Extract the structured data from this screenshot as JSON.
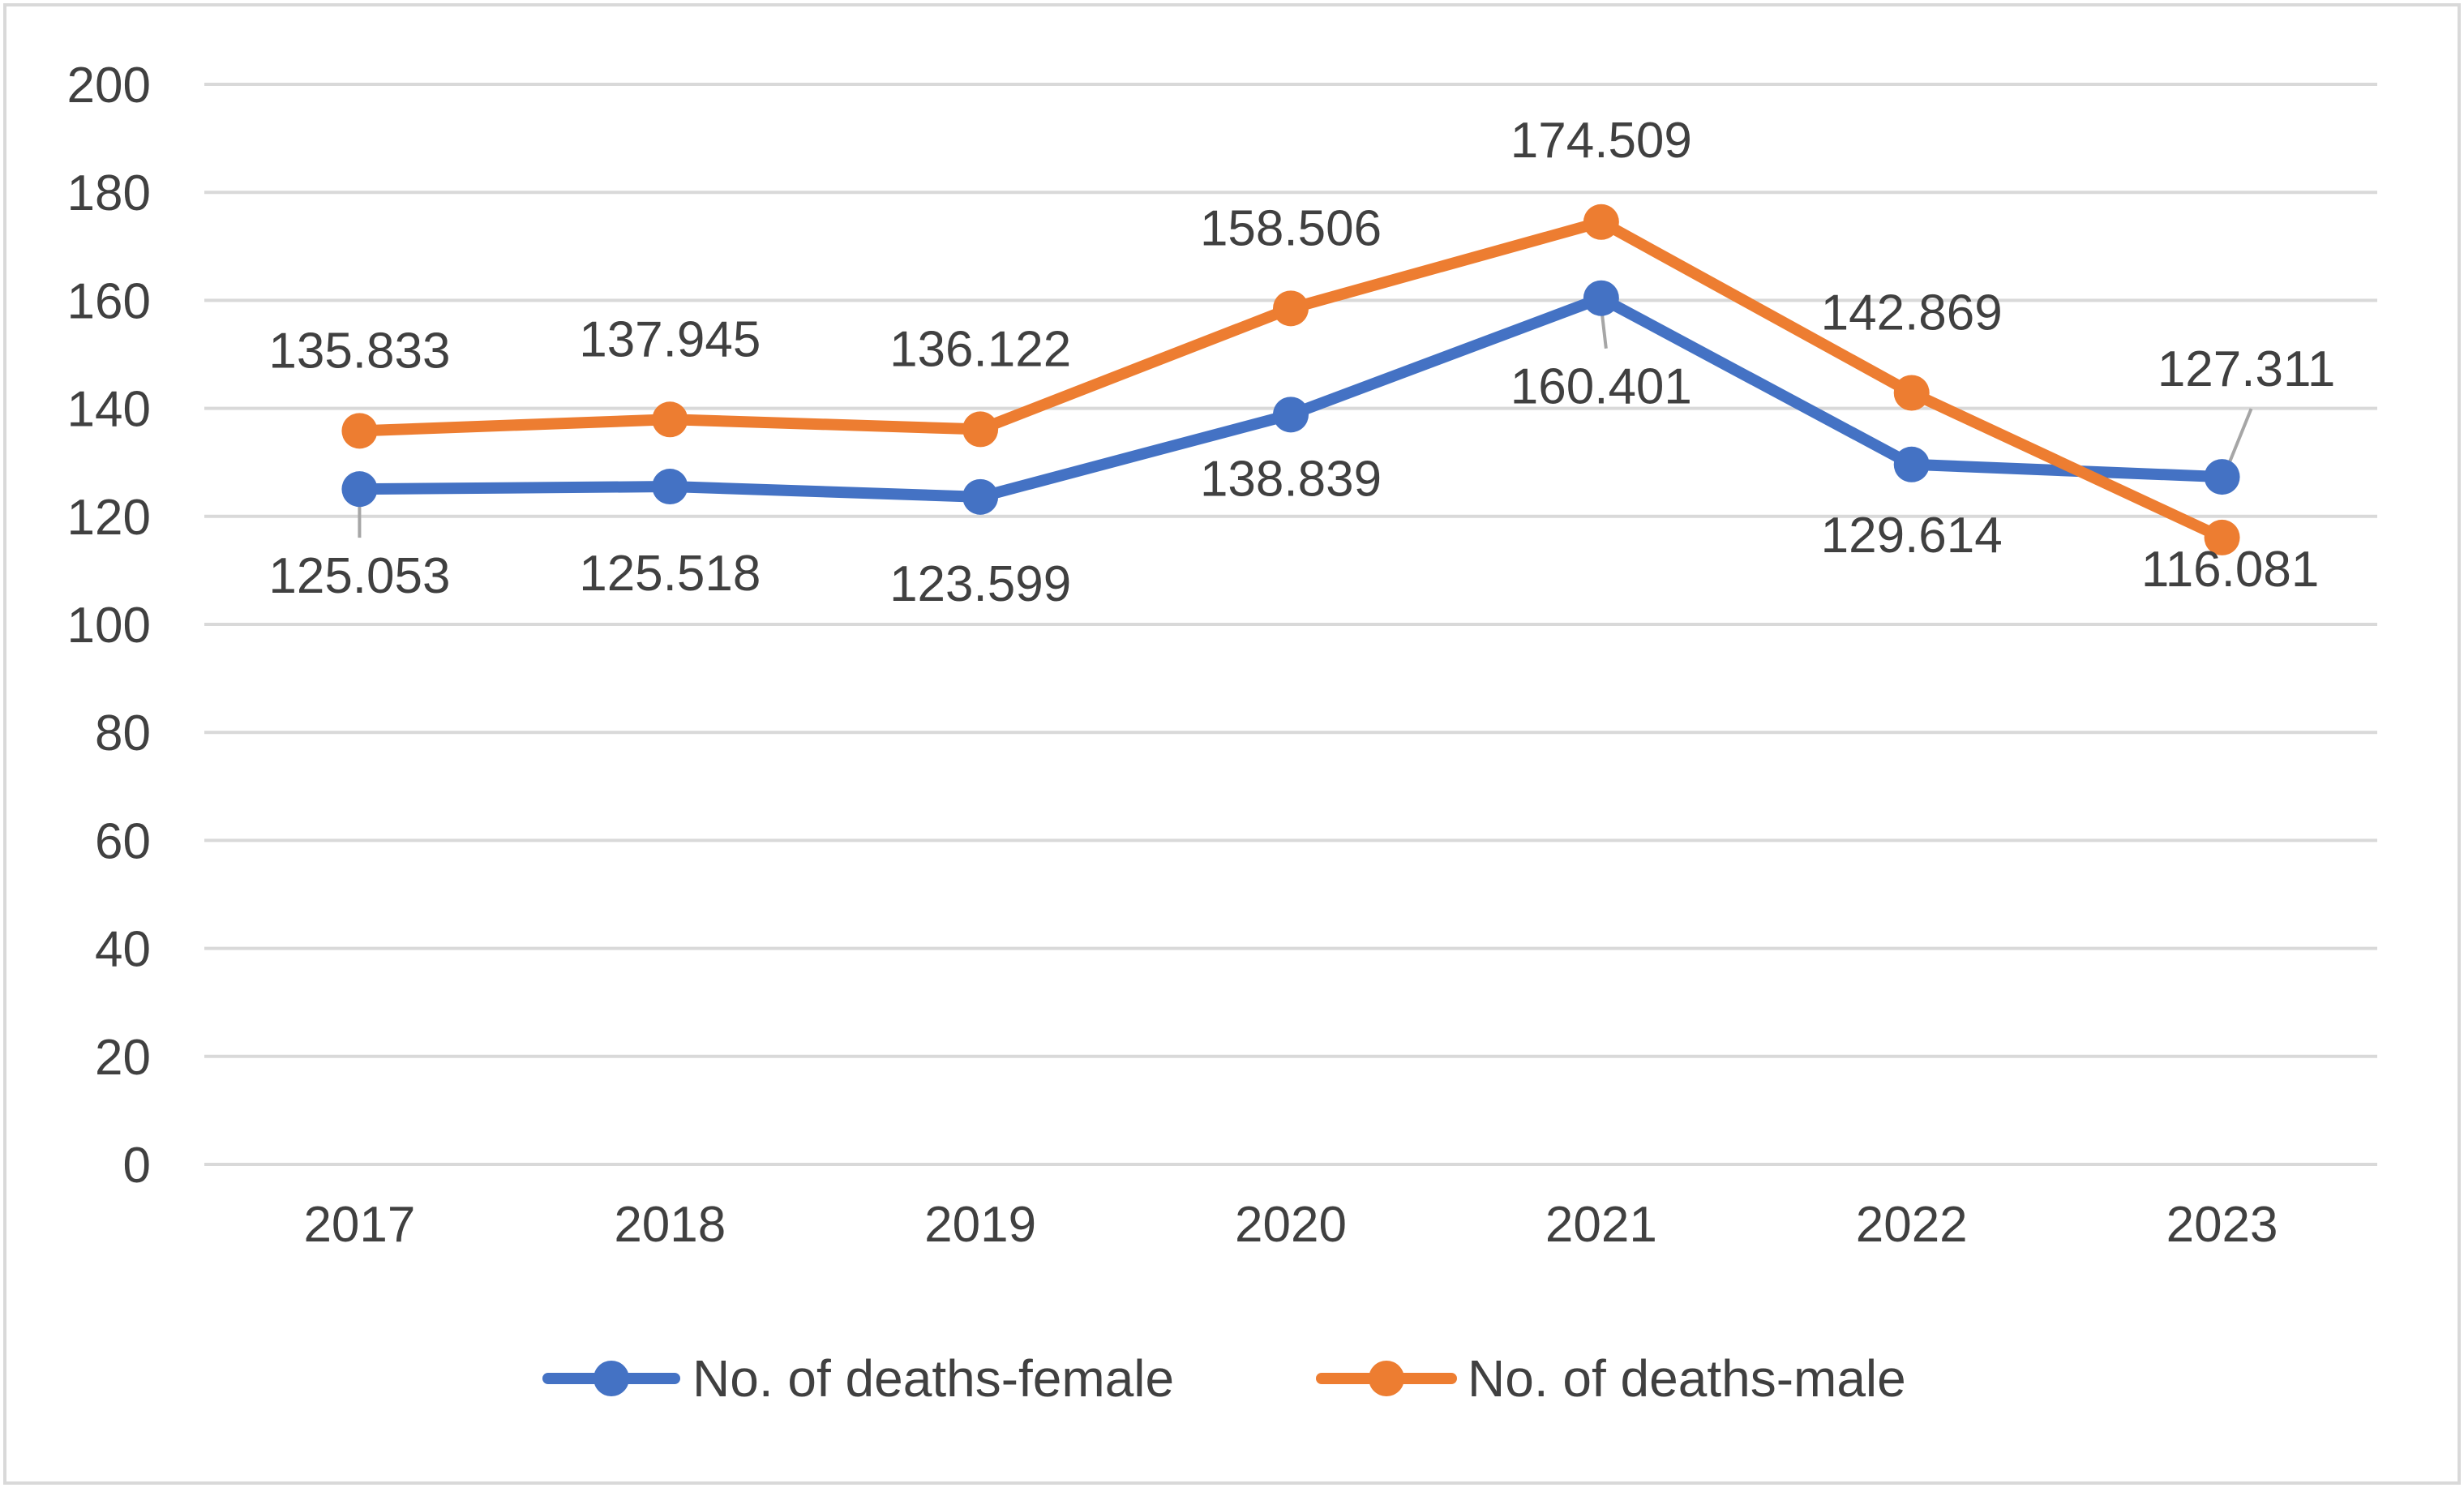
{
  "chart_data": {
    "type": "line",
    "title": "",
    "xlabel": "",
    "ylabel": "",
    "categories": [
      "2017",
      "2018",
      "2019",
      "2020",
      "2021",
      "2022",
      "2023"
    ],
    "ylim": [
      0,
      200
    ],
    "yticks": [
      0,
      20,
      40,
      60,
      80,
      100,
      120,
      140,
      160,
      180,
      200
    ],
    "grid": true,
    "legend_position": "bottom",
    "series": [
      {
        "name": "No. of deaths-female",
        "color": "#4472C4",
        "values": [
          125.053,
          125.518,
          123.599,
          138.839,
          160.401,
          129.614,
          127.311
        ],
        "labels": [
          "125.053",
          "125.518",
          "123.599",
          "138.839",
          "160.401",
          "129.614",
          "127.311"
        ],
        "label_positions": [
          "below",
          "below",
          "below",
          "below",
          "below",
          "below",
          "above"
        ]
      },
      {
        "name": "No. of deaths-male",
        "color": "#ED7D31",
        "values": [
          135.833,
          137.945,
          136.122,
          158.506,
          174.509,
          142.869,
          116.081
        ],
        "labels": [
          "135.833",
          "137.945",
          "136.122",
          "158.506",
          "174.509",
          "142.869",
          "116.081"
        ],
        "label_positions": [
          "above",
          "above",
          "above",
          "above",
          "above",
          "above",
          "below"
        ]
      }
    ],
    "leader_line_color": "#A6A6A6",
    "gridline_color": "#D9D9D9",
    "frame_color": "#D9D9D9"
  }
}
